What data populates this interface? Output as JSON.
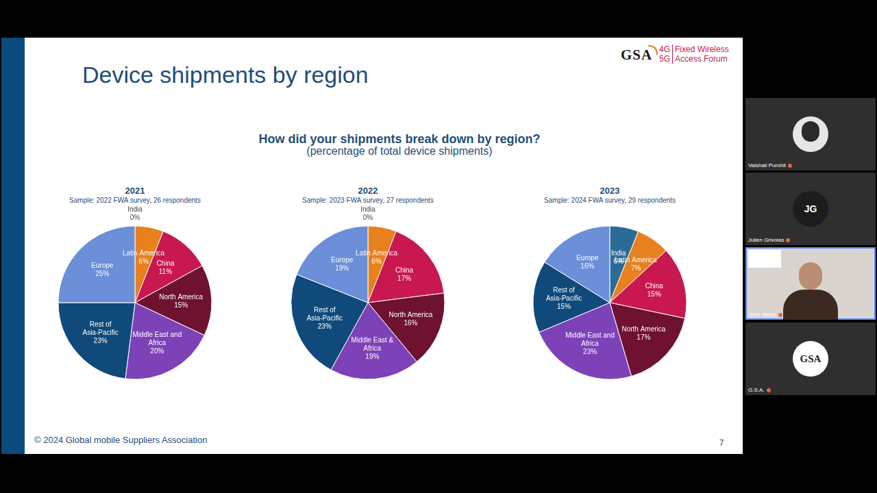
{
  "slide": {
    "title": "Device shipments by region",
    "question": "How did your shipments break down by region?",
    "question_note": "(percentage of total device shipments)",
    "footer": "© 2024 Global mobile Suppliers Association",
    "page": "7",
    "logo": {
      "name": "GSA",
      "lines": [
        [
          "4G",
          "Fixed Wireless"
        ],
        [
          "5G",
          "Access Forum"
        ]
      ]
    }
  },
  "participants": [
    {
      "name": "Vaishali Purohit"
    },
    {
      "name": "Julien Grivolas",
      "initials": "JG"
    },
    {
      "name": "John Yazlle"
    },
    {
      "name": "G.S.A.",
      "logo": "GSA"
    }
  ],
  "chart_data": [
    {
      "type": "pie",
      "title": "2021",
      "subtitle": "Sample: 2022 FWA survey, 26 respondents",
      "categories": [
        "India",
        "Latin America",
        "China",
        "North America",
        "Middle East and Africa",
        "Rest of Asia-Pacific",
        "Europe"
      ],
      "values": [
        0,
        6,
        11,
        15,
        20,
        23,
        25
      ],
      "value_labels": [
        "0%",
        "6%",
        "11%",
        "15%",
        "20%",
        "23%",
        "25%"
      ],
      "colors": [
        "#2c6b96",
        "#e8801e",
        "#c8184f",
        "#6e1230",
        "#7e42b8",
        "#0f4a7b",
        "#6b8fd8"
      ],
      "data_labels": true
    },
    {
      "type": "pie",
      "title": "2022",
      "subtitle": "Sample: 2023 FWA survey, 27 respondents",
      "categories": [
        "India",
        "Latin America",
        "China",
        "North America",
        "Middle East & Africa",
        "Rest of Asia-Pacific",
        "Europe"
      ],
      "values": [
        0,
        6,
        17,
        16,
        19,
        23,
        19
      ],
      "value_labels": [
        "0%",
        "6%",
        "17%",
        "16%",
        "19%",
        "23%",
        "19%"
      ],
      "colors": [
        "#2c6b96",
        "#e8801e",
        "#c8184f",
        "#6e1230",
        "#7e42b8",
        "#0f4a7b",
        "#6b8fd8"
      ],
      "data_labels": true
    },
    {
      "type": "pie",
      "title": "2023",
      "subtitle": "Sample: 2024 FWA survey, 29 respondents",
      "categories": [
        "India",
        "Latin America",
        "China",
        "North America",
        "Middle East and Africa",
        "Rest of Asia-Pacific",
        "Europe"
      ],
      "values": [
        6,
        7,
        15,
        17,
        23,
        15,
        16
      ],
      "value_labels": [
        "6%",
        "7%",
        "15%",
        "17%",
        "23%",
        "15%",
        "16%"
      ],
      "colors": [
        "#2c6b96",
        "#e8801e",
        "#c8184f",
        "#6e1230",
        "#7e42b8",
        "#0f4a7b",
        "#6b8fd8"
      ],
      "data_labels": true
    }
  ]
}
